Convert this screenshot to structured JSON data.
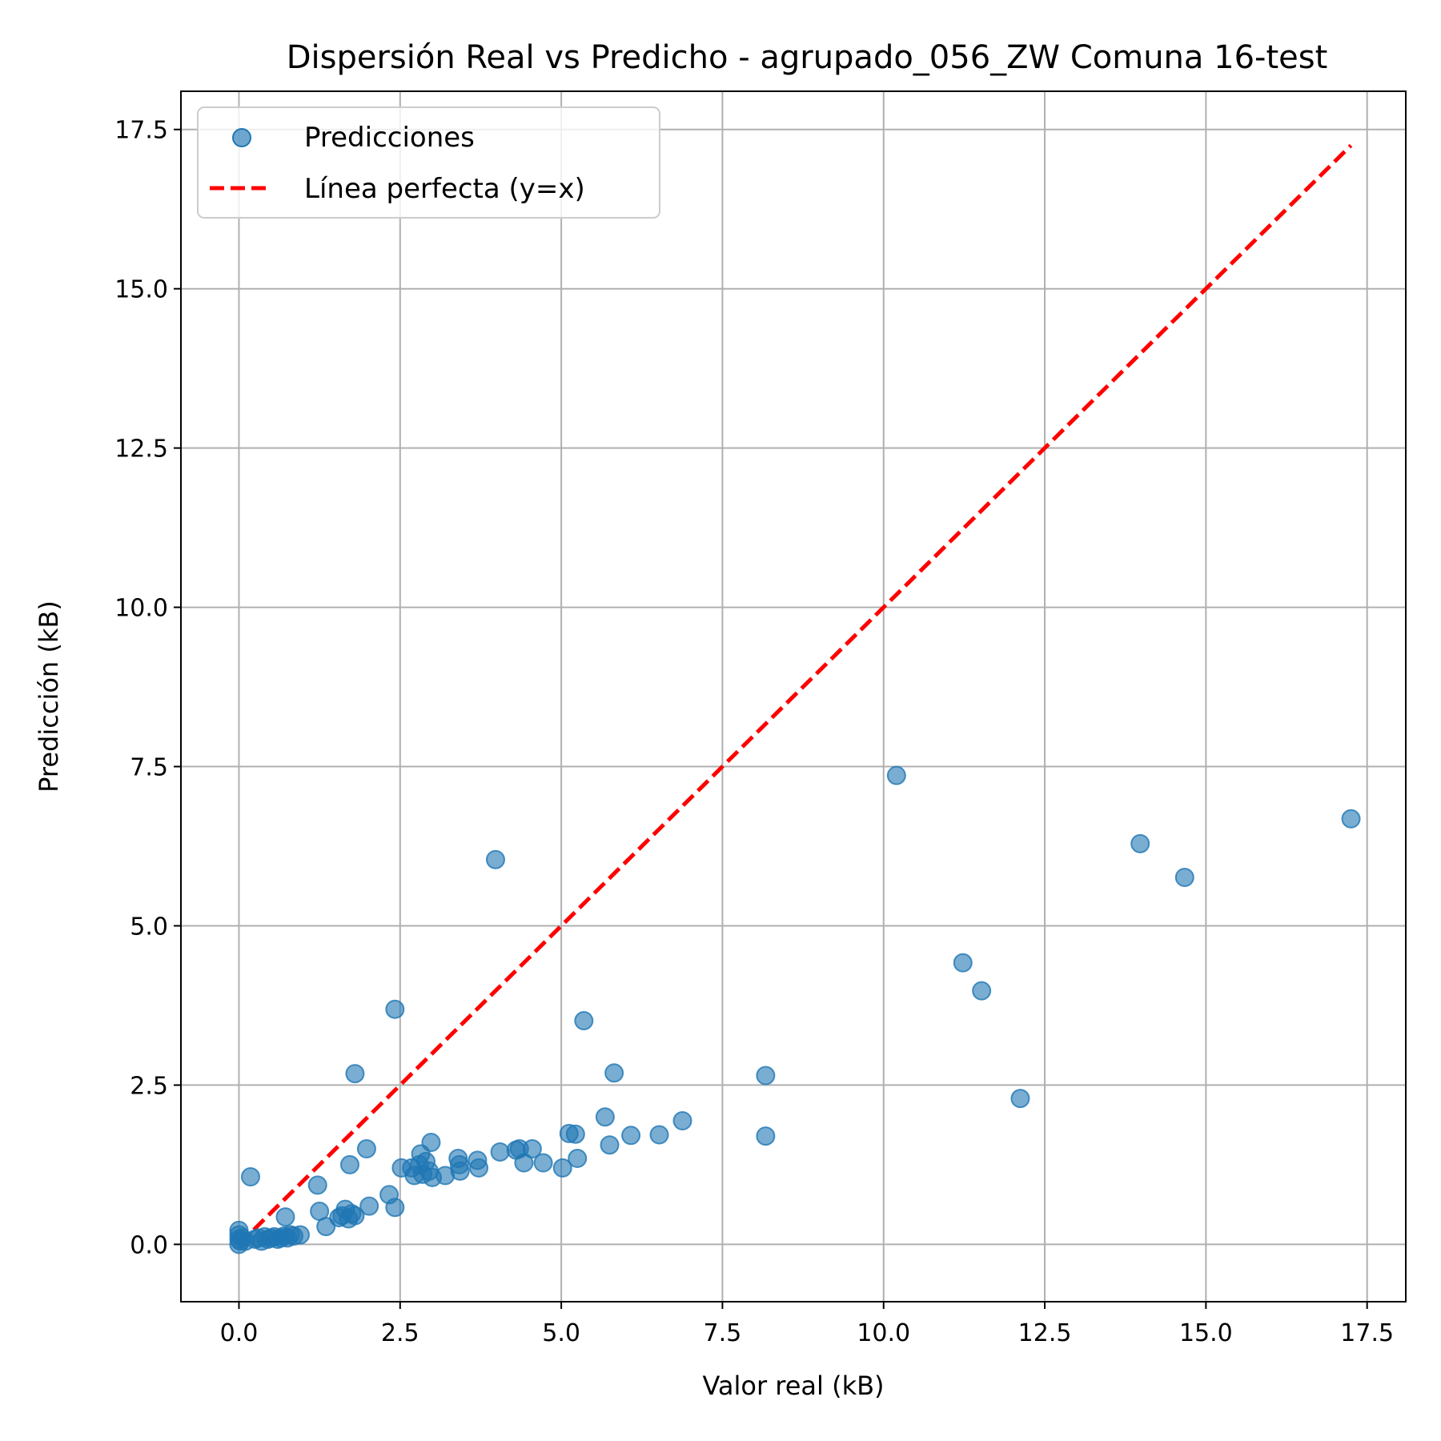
{
  "chart_data": {
    "type": "scatter",
    "title": "Dispersión Real vs Predicho - agrupado_056_ZW Comuna 16-test",
    "xlabel": "Valor real (kB)",
    "ylabel": "Predicción (kB)",
    "xlim": [
      -0.9,
      18.1
    ],
    "ylim": [
      -0.9,
      18.1
    ],
    "xticks": [
      0.0,
      2.5,
      5.0,
      7.5,
      10.0,
      12.5,
      15.0,
      17.5
    ],
    "yticks": [
      0.0,
      2.5,
      5.0,
      7.5,
      10.0,
      12.5,
      15.0,
      17.5
    ],
    "xtick_labels": [
      "0.0",
      "2.5",
      "5.0",
      "7.5",
      "10.0",
      "12.5",
      "15.0",
      "17.5"
    ],
    "ytick_labels": [
      "0.0",
      "2.5",
      "5.0",
      "7.5",
      "10.0",
      "12.5",
      "15.0",
      "17.5"
    ],
    "grid": true,
    "legend": "top-left",
    "series": [
      {
        "name": "Predicciones",
        "kind": "scatter",
        "color": "#1f77b4",
        "points": [
          [
            0.0,
            0.0
          ],
          [
            0.0,
            0.08
          ],
          [
            0.0,
            0.15
          ],
          [
            0.0,
            0.22
          ],
          [
            0.02,
            0.05
          ],
          [
            0.05,
            0.1
          ],
          [
            0.1,
            0.05
          ],
          [
            0.18,
            1.06
          ],
          [
            0.25,
            0.08
          ],
          [
            0.3,
            0.1
          ],
          [
            0.35,
            0.05
          ],
          [
            0.4,
            0.12
          ],
          [
            0.45,
            0.08
          ],
          [
            0.5,
            0.1
          ],
          [
            0.55,
            0.12
          ],
          [
            0.6,
            0.08
          ],
          [
            0.65,
            0.1
          ],
          [
            0.7,
            0.13
          ],
          [
            0.72,
            0.43
          ],
          [
            0.75,
            0.1
          ],
          [
            0.8,
            0.15
          ],
          [
            0.85,
            0.13
          ],
          [
            0.95,
            0.15
          ],
          [
            1.22,
            0.93
          ],
          [
            1.25,
            0.52
          ],
          [
            1.35,
            0.28
          ],
          [
            1.55,
            0.42
          ],
          [
            1.6,
            0.45
          ],
          [
            1.65,
            0.55
          ],
          [
            1.7,
            0.4
          ],
          [
            1.72,
            1.25
          ],
          [
            1.75,
            0.48
          ],
          [
            1.8,
            0.45
          ],
          [
            1.8,
            2.68
          ],
          [
            1.98,
            1.5
          ],
          [
            2.02,
            0.6
          ],
          [
            2.33,
            0.78
          ],
          [
            2.42,
            3.69
          ],
          [
            2.42,
            0.58
          ],
          [
            2.52,
            1.2
          ],
          [
            2.68,
            1.2
          ],
          [
            2.72,
            1.08
          ],
          [
            2.8,
            1.25
          ],
          [
            2.82,
            1.42
          ],
          [
            2.85,
            1.1
          ],
          [
            2.9,
            1.3
          ],
          [
            2.95,
            1.15
          ],
          [
            2.98,
            1.6
          ],
          [
            3.0,
            1.05
          ],
          [
            3.2,
            1.08
          ],
          [
            3.4,
            1.35
          ],
          [
            3.42,
            1.25
          ],
          [
            3.43,
            1.15
          ],
          [
            3.7,
            1.32
          ],
          [
            3.72,
            1.2
          ],
          [
            3.98,
            6.04
          ],
          [
            4.05,
            1.45
          ],
          [
            4.3,
            1.48
          ],
          [
            4.35,
            1.5
          ],
          [
            4.42,
            1.28
          ],
          [
            4.55,
            1.5
          ],
          [
            4.72,
            1.28
          ],
          [
            5.02,
            1.2
          ],
          [
            5.12,
            1.74
          ],
          [
            5.22,
            1.73
          ],
          [
            5.25,
            1.35
          ],
          [
            5.35,
            3.51
          ],
          [
            5.68,
            2.0
          ],
          [
            5.75,
            1.56
          ],
          [
            5.82,
            2.69
          ],
          [
            6.08,
            1.71
          ],
          [
            6.52,
            1.72
          ],
          [
            6.88,
            1.94
          ],
          [
            8.17,
            2.65
          ],
          [
            8.17,
            1.7
          ],
          [
            10.2,
            7.36
          ],
          [
            11.23,
            4.42
          ],
          [
            11.52,
            3.98
          ],
          [
            12.12,
            2.29
          ],
          [
            13.98,
            6.29
          ],
          [
            14.67,
            5.76
          ],
          [
            17.25,
            6.68
          ]
        ]
      },
      {
        "name": "Línea perfecta (y=x)",
        "kind": "line",
        "color": "#ff0000",
        "style": "dashed",
        "points": [
          [
            0.0,
            0.0
          ],
          [
            17.25,
            17.25
          ]
        ]
      }
    ]
  }
}
